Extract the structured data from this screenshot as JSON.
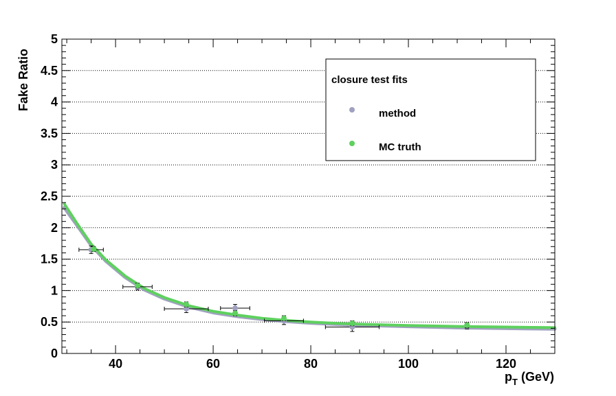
{
  "chart_data": {
    "type": "scatter",
    "title": "",
    "xlabel": "p",
    "xlabel_sub": "T",
    "xlabel_unit": " (GeV)",
    "ylabel": "Fake Ratio",
    "xlim": [
      29,
      130
    ],
    "ylim": [
      0,
      5
    ],
    "xticks": [
      40,
      60,
      80,
      100,
      120
    ],
    "xtick_labels": [
      "40",
      "60",
      "80",
      "100",
      "120"
    ],
    "yticks": [
      0,
      0.5,
      1,
      1.5,
      2,
      2.5,
      3,
      3.5,
      4,
      4.5,
      5
    ],
    "ytick_labels": [
      "0",
      "0.5",
      "1",
      "1.5",
      "2",
      "2.5",
      "3",
      "3.5",
      "4",
      "4.5",
      "5"
    ],
    "grid": "horizontal-dotted",
    "legend": {
      "title": "closure test fits",
      "placement": "top-right",
      "entries": [
        "method",
        "MC truth"
      ]
    },
    "series": [
      {
        "name": "method",
        "color": "#a0a0c0",
        "points": [
          {
            "x": 35,
            "y": 1.65,
            "xerr": 2.5,
            "yerr": 0.06
          },
          {
            "x": 44.5,
            "y": 1.06,
            "xerr": 3,
            "yerr": 0.05
          },
          {
            "x": 54.5,
            "y": 0.71,
            "xerr": 4.5,
            "yerr": 0.06
          },
          {
            "x": 64.5,
            "y": 0.72,
            "xerr": 3,
            "yerr": 0.06
          },
          {
            "x": 74.5,
            "y": 0.52,
            "xerr": 4,
            "yerr": 0.06
          },
          {
            "x": 88.5,
            "y": 0.42,
            "xerr": 5.5,
            "yerr": 0.07
          },
          {
            "x": 112,
            "y": 0.44,
            "xerr": 0,
            "yerr": 0.05
          }
        ],
        "fit": {
          "x": [
            29.5,
            32,
            35,
            38,
            42,
            46,
            50,
            55,
            60,
            65,
            70,
            75,
            80,
            85,
            90,
            100,
            110,
            120,
            130
          ],
          "y": [
            2.32,
            2.05,
            1.72,
            1.47,
            1.21,
            1.01,
            0.87,
            0.74,
            0.65,
            0.59,
            0.545,
            0.51,
            0.485,
            0.465,
            0.45,
            0.43,
            0.41,
            0.4,
            0.39
          ]
        }
      },
      {
        "name": "MC truth",
        "color": "#5ed15e",
        "points": [
          {
            "x": 35.5,
            "y": 1.66,
            "xerr": 0,
            "yerr": 0.04
          },
          {
            "x": 44.5,
            "y": 1.08,
            "xerr": 0,
            "yerr": 0.04
          },
          {
            "x": 54.5,
            "y": 0.78,
            "xerr": 0,
            "yerr": 0.04
          },
          {
            "x": 64.5,
            "y": 0.64,
            "xerr": 0,
            "yerr": 0.04
          },
          {
            "x": 74.5,
            "y": 0.56,
            "xerr": 0,
            "yerr": 0.04
          },
          {
            "x": 88.5,
            "y": 0.48,
            "xerr": 0,
            "yerr": 0.04
          },
          {
            "x": 112,
            "y": 0.45,
            "xerr": 0,
            "yerr": 0.04
          }
        ],
        "fit": {
          "x": [
            29.5,
            32,
            35,
            38,
            42,
            46,
            50,
            55,
            60,
            65,
            70,
            75,
            80,
            85,
            90,
            100,
            110,
            120,
            130
          ],
          "y": [
            2.38,
            2.08,
            1.74,
            1.49,
            1.23,
            1.03,
            0.89,
            0.76,
            0.67,
            0.61,
            0.56,
            0.525,
            0.5,
            0.48,
            0.465,
            0.445,
            0.43,
            0.42,
            0.41
          ]
        }
      }
    ]
  }
}
